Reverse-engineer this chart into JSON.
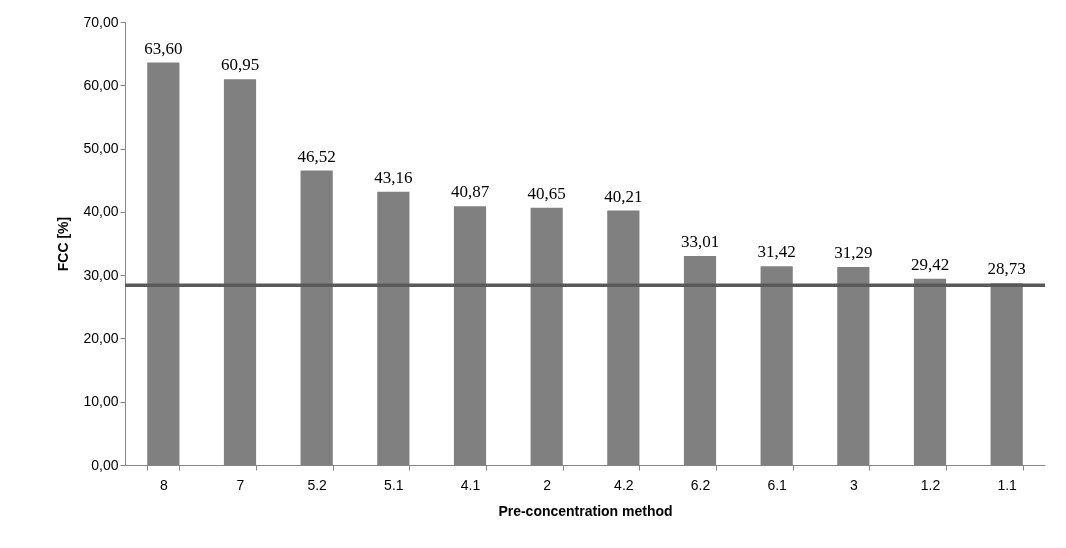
{
  "chart_data": {
    "type": "bar",
    "xlabel": "Pre-concentration method",
    "ylabel": "FCC [%]",
    "categories": [
      "8",
      "7",
      "5.2",
      "5.1",
      "4.1",
      "2",
      "4.2",
      "6.2",
      "6.1",
      "3",
      "1.2",
      "1.1"
    ],
    "values": [
      63.6,
      60.95,
      46.52,
      43.16,
      40.87,
      40.65,
      40.21,
      33.01,
      31.42,
      31.29,
      29.42,
      28.73
    ],
    "value_labels": [
      "63,60",
      "60,95",
      "46,52",
      "43,16",
      "40,87",
      "40,65",
      "40,21",
      "33,01",
      "31,42",
      "31,29",
      "29,42",
      "28,73"
    ],
    "color": "#808080",
    "ylim": [
      0,
      70
    ],
    "yticks": [
      {
        "value": 0,
        "label": "0,00"
      },
      {
        "value": 10,
        "label": "10,00"
      },
      {
        "value": 20,
        "label": "20,00"
      },
      {
        "value": 30,
        "label": "30,00"
      },
      {
        "value": 40,
        "label": "40,00"
      },
      {
        "value": 50,
        "label": "50,00"
      },
      {
        "value": 60,
        "label": "60,00"
      },
      {
        "value": 70,
        "label": "70,00"
      }
    ],
    "ref_lines": [
      {
        "axis": "y",
        "value": 28.4,
        "color": "#595959"
      }
    ],
    "grid": false
  }
}
